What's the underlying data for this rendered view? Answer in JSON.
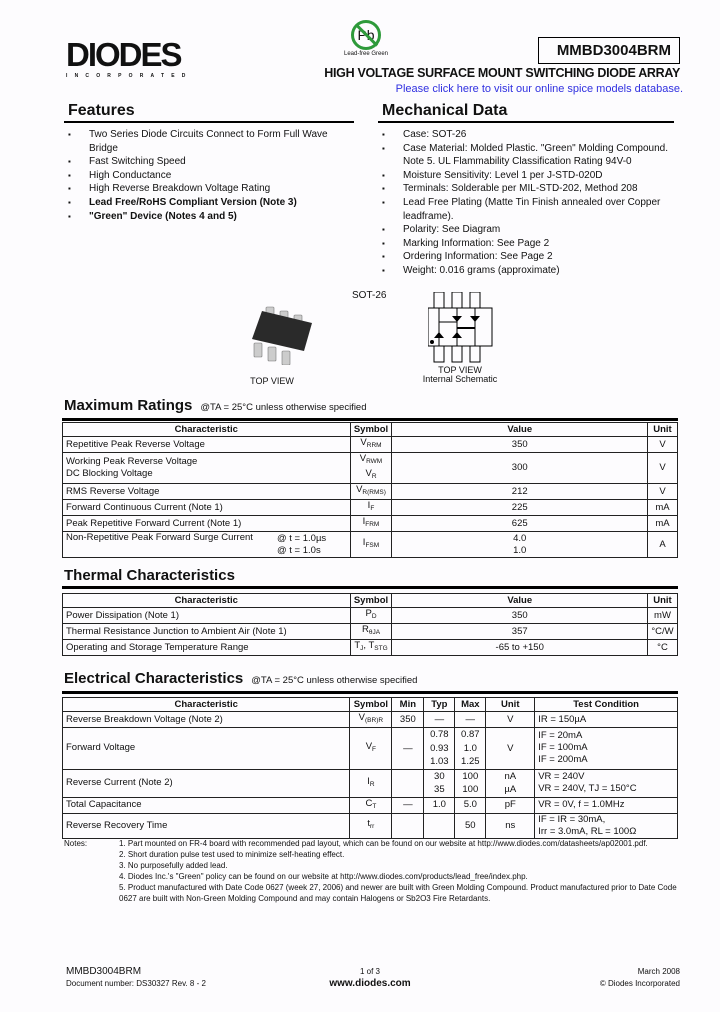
{
  "header": {
    "logo_text": "DIODES",
    "logo_sub": "INCORPORATED",
    "pb_text": "Pb",
    "pb_label": "Lead-free Green",
    "part_number": "MMBD3004BRM",
    "title": "HIGH VOLTAGE SURFACE MOUNT SWITCHING DIODE ARRAY",
    "spice_link": "Please click here to visit our online spice models database.",
    "link_color": "#3030e0"
  },
  "features": {
    "heading": "Features",
    "items": [
      {
        "text": "Two Series Diode Circuits Connect to Form Full Wave Bridge",
        "bold": false
      },
      {
        "text": "Fast Switching Speed",
        "bold": false
      },
      {
        "text": "High Conductance",
        "bold": false
      },
      {
        "text": "High Reverse Breakdown Voltage Rating",
        "bold": false
      },
      {
        "text": "Lead Free/RoHS Compliant Version (Note 3)",
        "bold": true
      },
      {
        "text": "\"Green\" Device (Notes 4 and 5)",
        "bold": true
      }
    ]
  },
  "mechanical": {
    "heading": "Mechanical Data",
    "items": [
      "Case: SOT-26",
      "Case Material:  Molded Plastic. \"Green\" Molding Compound. Note 5.  UL Flammability Classification Rating 94V-0",
      "Moisture Sensitivity: Level 1 per J-STD-020D",
      "Terminals: Solderable per MIL-STD-202, Method 208",
      "Lead Free Plating (Matte Tin Finish annealed over Copper leadframe).",
      "Polarity: See Diagram",
      "Marking Information: See Page 2",
      "Ordering Information:  See Page 2",
      "Weight: 0.016 grams (approximate)"
    ]
  },
  "package": {
    "name": "SOT-26",
    "top_view": "TOP VIEW",
    "schematic_top": "TOP VIEW",
    "schematic_caption": "Internal Schematic"
  },
  "max_ratings": {
    "heading": "Maximum Ratings",
    "condition": "@TA = 25°C unless otherwise specified",
    "columns": [
      "Characteristic",
      "Symbol",
      "Value",
      "Unit"
    ],
    "rows": [
      {
        "char": "Repetitive Peak Reverse Voltage",
        "sym": "V",
        "sub": "RRM",
        "value": "350",
        "unit": "V"
      },
      {
        "char": "Working Peak Reverse Voltage",
        "char2": "DC Blocking Voltage",
        "sym": "V",
        "sub": "RWM",
        "sym2": "V",
        "sub2": "R",
        "value": "300",
        "unit": "V"
      },
      {
        "char": "RMS Reverse Voltage",
        "sym": "V",
        "sub": "R(RMS)",
        "value": "212",
        "unit": "V"
      },
      {
        "char": "Forward Continuous Current (Note 1)",
        "sym": "I",
        "sub": "F",
        "value": "225",
        "unit": "mA"
      },
      {
        "char": "Peak Repetitive Forward Current (Note 1)",
        "sym": "I",
        "sub": "FRM",
        "value": "625",
        "unit": "mA"
      },
      {
        "char": "Non-Repetitive Peak Forward Surge Current",
        "cond1": "@ t = 1.0µs",
        "cond2": "@ t = 1.0s",
        "sym": "I",
        "sub": "FSM",
        "value": "4.0",
        "value2": "1.0",
        "unit": "A"
      }
    ]
  },
  "thermal": {
    "heading": "Thermal Characteristics",
    "columns": [
      "Characteristic",
      "Symbol",
      "Value",
      "Unit"
    ],
    "rows": [
      {
        "char": "Power Dissipation (Note 1)",
        "sym": "P",
        "sub": "D",
        "value": "350",
        "unit": "mW"
      },
      {
        "char": "Thermal Resistance Junction to Ambient Air (Note 1)",
        "sym": "R",
        "sub": "θJA",
        "value": "357",
        "unit": "°C/W"
      },
      {
        "char": "Operating and Storage Temperature Range",
        "sym": "T",
        "sub": "J",
        "sym2": ", T",
        "sub2": "STG",
        "value": "-65 to +150",
        "unit": "°C"
      }
    ]
  },
  "electrical": {
    "heading": "Electrical Characteristics",
    "condition": "@TA = 25°C unless otherwise specified",
    "columns": [
      "Characteristic",
      "Symbol",
      "Min",
      "Typ",
      "Max",
      "Unit",
      "Test Condition"
    ],
    "rows": [
      {
        "char": "Reverse Breakdown Voltage (Note 2)",
        "sym": "V",
        "sub": "(BR)R",
        "min": "350",
        "typ": "—",
        "max": "—",
        "unit": "V",
        "tc": [
          "IR = 150µA"
        ]
      },
      {
        "char": "Forward Voltage",
        "sym": "V",
        "sub": "F",
        "min": "—",
        "typ": "0.78\n0.93\n1.03",
        "max": "0.87\n1.0\n1.25",
        "unit": "V",
        "tc": [
          "IF = 20mA",
          "IF = 100mA",
          "IF = 200mA"
        ]
      },
      {
        "char": "Reverse Current (Note 2)",
        "sym": "I",
        "sub": "R",
        "min": "",
        "typ": "30\n35",
        "max": "100\n100",
        "unit": "nA\nµA",
        "tc": [
          "VR = 240V",
          "VR = 240V, TJ = 150°C"
        ]
      },
      {
        "char": "Total Capacitance",
        "sym": "C",
        "sub": "T",
        "min": "—",
        "typ": "1.0",
        "max": "5.0",
        "unit": "pF",
        "tc": [
          "VR = 0V, f = 1.0MHz"
        ]
      },
      {
        "char": "Reverse Recovery Time",
        "sym": "t",
        "sub": "rr",
        "min": "",
        "typ": "",
        "max": "50",
        "unit": "ns",
        "tc": [
          "IF = IR = 30mA,",
          "Irr = 3.0mA, RL = 100Ω"
        ]
      }
    ]
  },
  "notes": {
    "label": "Notes:",
    "items": [
      "1.  Part mounted on FR-4 board with recommended pad layout, which can be found on our website at http://www.diodes.com/datasheets/ap02001.pdf.",
      "2.  Short duration pulse test used to minimize self-heating effect.",
      "3.  No purposefully added lead.",
      "4.  Diodes Inc.'s \"Green\" policy can be found on our website at http://www.diodes.com/products/lead_free/index.php.",
      "5.  Product manufactured with Date Code 0627 (week 27, 2006) and newer are built with Green Molding Compound. Product manufactured prior to Date Code 0627 are built with Non-Green Molding Compound and may contain Halogens or Sb2O3 Fire Retardants."
    ]
  },
  "footer": {
    "part": "MMBD3004BRM",
    "doc_number": "Document number: DS30327 Rev. 8 - 2",
    "page": "1 of 3",
    "website": "www.diodes.com",
    "date": "March 2008",
    "copyright": "© Diodes Incorporated"
  }
}
